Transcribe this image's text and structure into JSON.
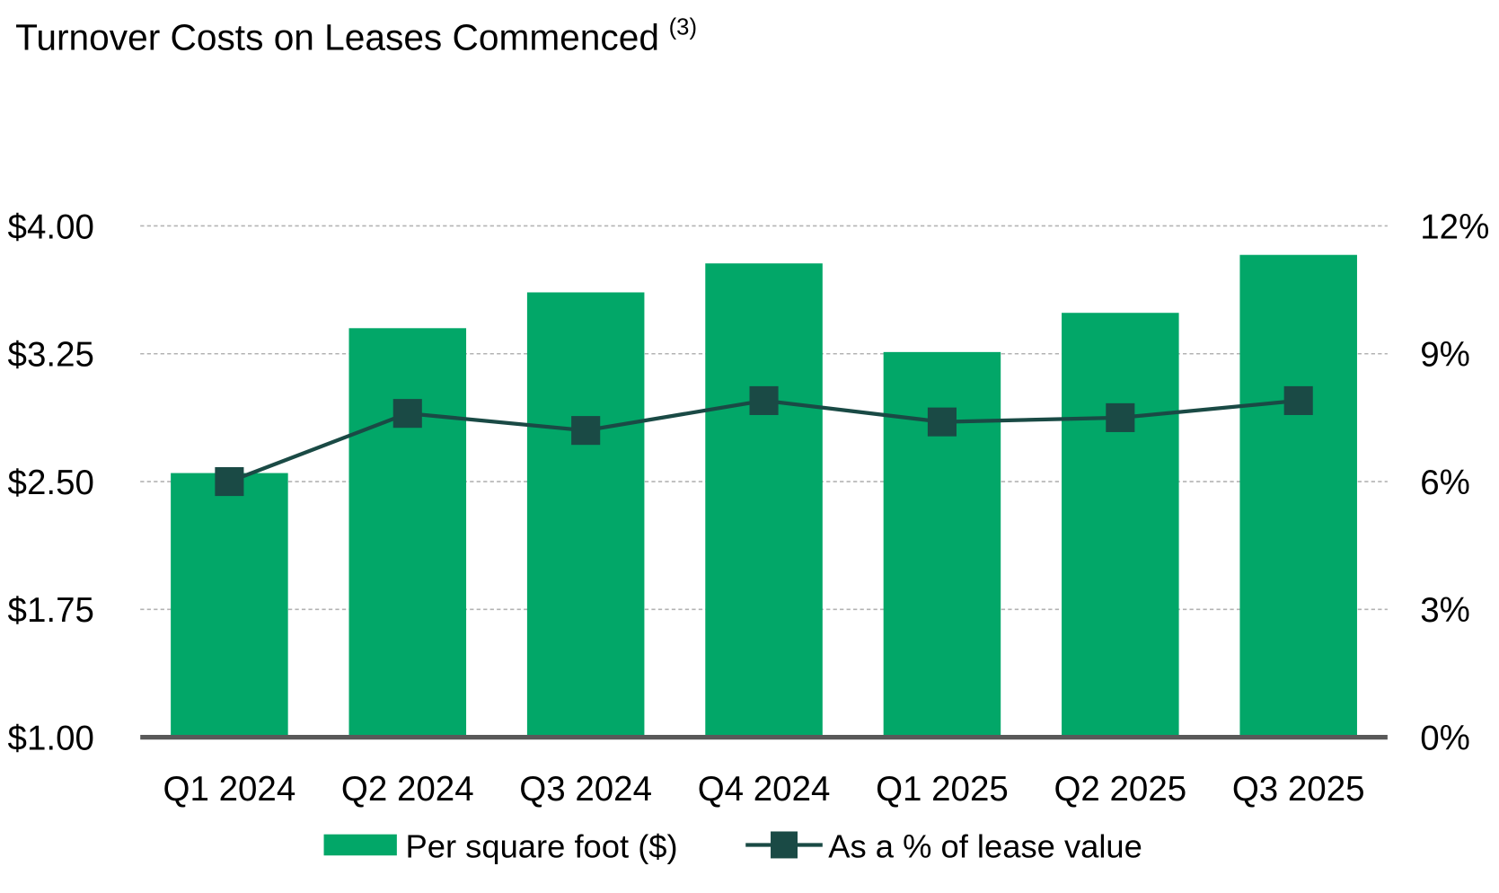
{
  "chart_data": {
    "type": "bar",
    "title": "Turnover Costs on Leases Commenced",
    "title_superscript": "(3)",
    "categories": [
      "Q1 2024",
      "Q2 2024",
      "Q3 2024",
      "Q4 2024",
      "Q1 2025",
      "Q2 2025",
      "Q3 2025"
    ],
    "series": [
      {
        "name": "Per square foot ($)",
        "type": "bar",
        "axis": "left",
        "color": "#02A768",
        "values": [
          2.55,
          3.4,
          3.61,
          3.78,
          3.26,
          3.49,
          3.83
        ]
      },
      {
        "name": "As a % of lease value",
        "type": "line",
        "axis": "right",
        "color": "#1A4A45",
        "marker": "square",
        "values": [
          6.0,
          7.6,
          7.2,
          7.9,
          7.4,
          7.5,
          7.9
        ]
      }
    ],
    "y_left": {
      "range": [
        1.0,
        4.0
      ],
      "ticks": [
        1.0,
        1.75,
        2.5,
        3.25,
        4.0
      ],
      "tick_labels": [
        "$1.00",
        "$1.75",
        "$2.50",
        "$3.25",
        "$4.00"
      ]
    },
    "y_right": {
      "range": [
        0,
        12
      ],
      "ticks": [
        0,
        3,
        6,
        9,
        12
      ],
      "tick_labels": [
        "0%",
        "3%",
        "6%",
        "9%",
        "12%"
      ]
    },
    "grid": true,
    "legend": "bottom"
  }
}
